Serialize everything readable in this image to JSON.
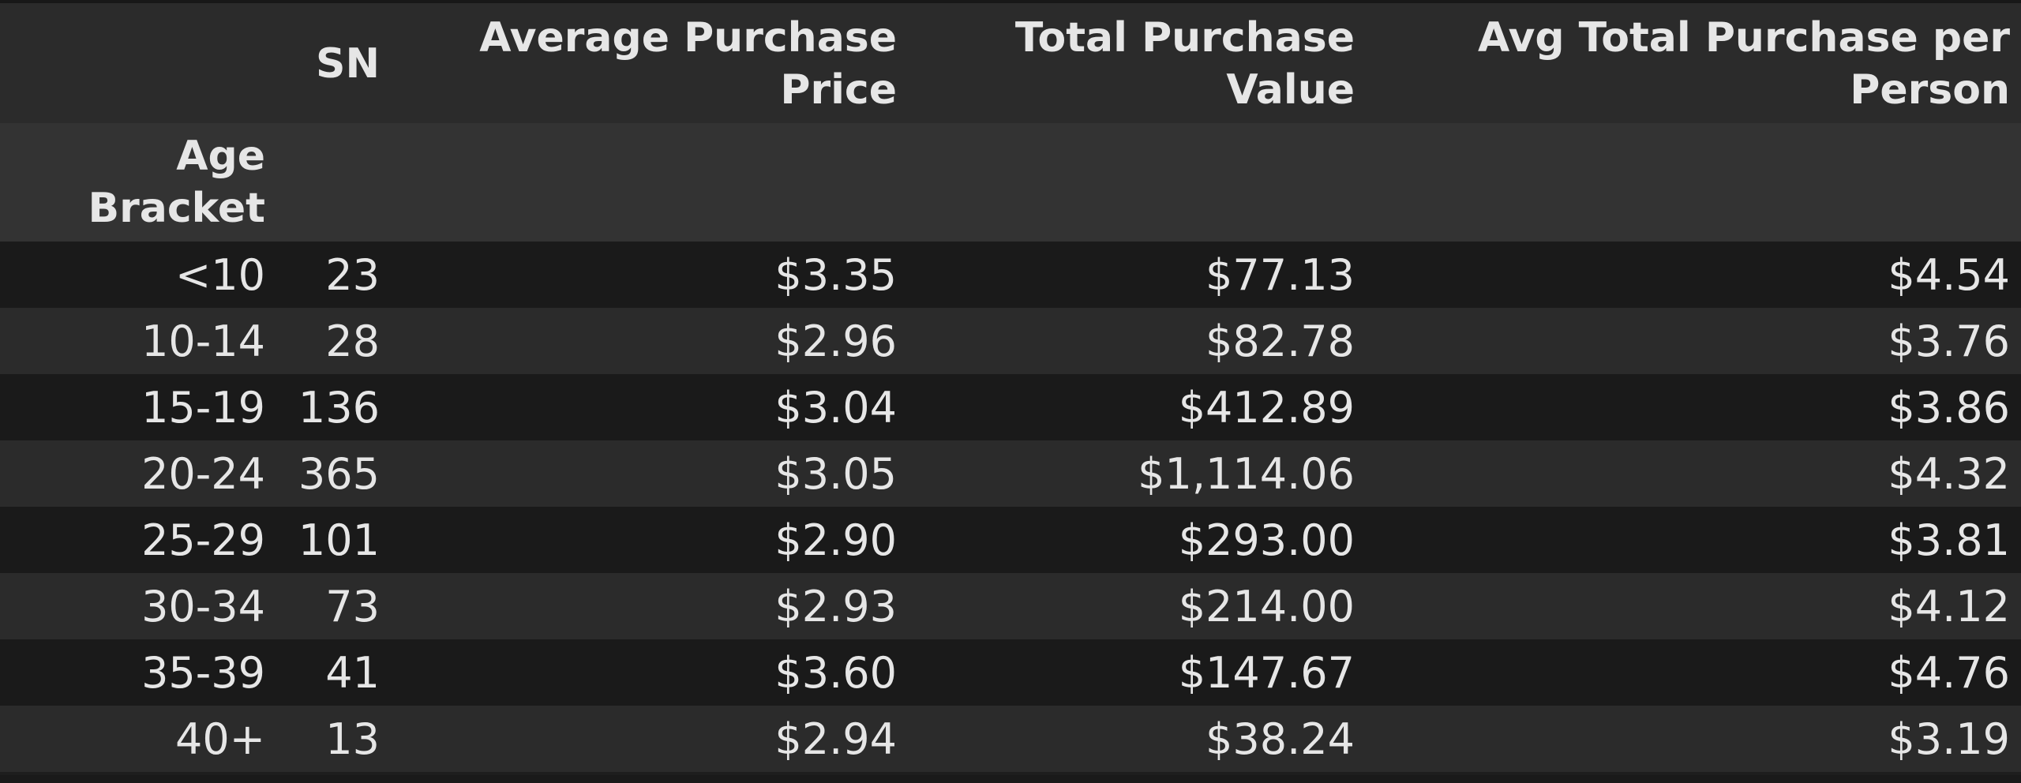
{
  "table": {
    "columns": [
      "SN",
      "Average Purchase Price",
      "Total Purchase Value",
      "Avg Total Purchase per Person"
    ],
    "index_name": "Age Bracket",
    "rows": [
      {
        "label": "<10",
        "sn": "23",
        "avg_price": "$3.35",
        "total_value": "$77.13",
        "per_person": "$4.54"
      },
      {
        "label": "10-14",
        "sn": "28",
        "avg_price": "$2.96",
        "total_value": "$82.78",
        "per_person": "$3.76"
      },
      {
        "label": "15-19",
        "sn": "136",
        "avg_price": "$3.04",
        "total_value": "$412.89",
        "per_person": "$3.86"
      },
      {
        "label": "20-24",
        "sn": "365",
        "avg_price": "$3.05",
        "total_value": "$1,114.06",
        "per_person": "$4.32"
      },
      {
        "label": "25-29",
        "sn": "101",
        "avg_price": "$2.90",
        "total_value": "$293.00",
        "per_person": "$3.81"
      },
      {
        "label": "30-34",
        "sn": "73",
        "avg_price": "$2.93",
        "total_value": "$214.00",
        "per_person": "$4.12"
      },
      {
        "label": "35-39",
        "sn": "41",
        "avg_price": "$3.60",
        "total_value": "$147.67",
        "per_person": "$4.76"
      },
      {
        "label": "40+",
        "sn": "13",
        "avg_price": "$2.94",
        "total_value": "$38.24",
        "per_person": "$3.19"
      }
    ]
  },
  "colors": {
    "background": "#1e1e1e",
    "header_row": "#2b2b2b",
    "index_header_row": "#333333",
    "row_odd": "#1a1a1a",
    "row_even": "#2b2b2b",
    "text": "#e6e6e6"
  }
}
